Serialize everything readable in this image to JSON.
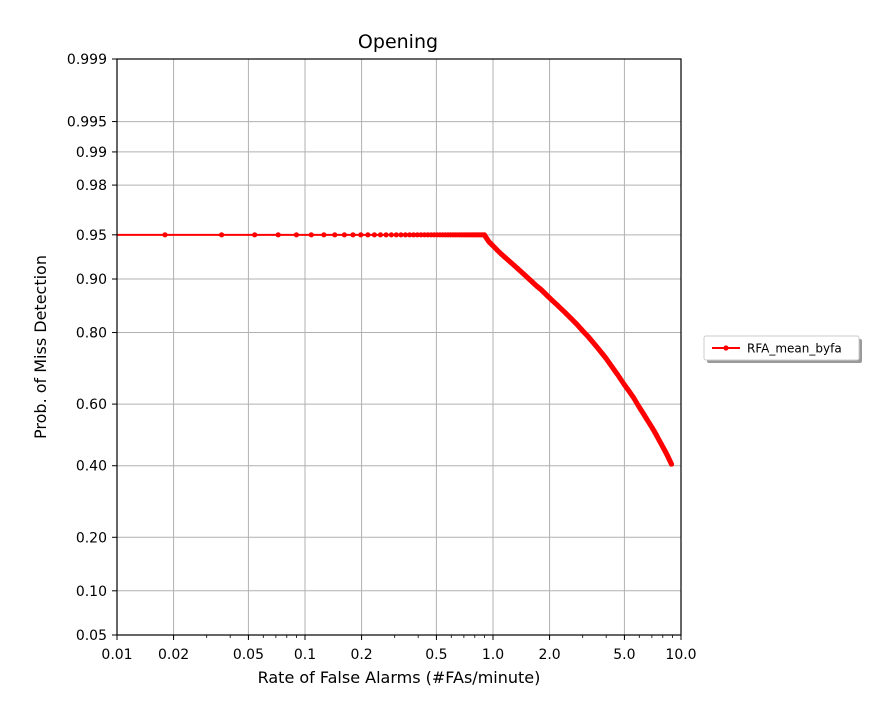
{
  "chart_data": {
    "type": "line",
    "title": "Opening",
    "xlabel": "Rate of False Alarms (#FAs/minute)",
    "ylabel": "Prob. of Miss Detection",
    "xscale": "log",
    "yscale": "probit",
    "xlim": [
      0.01,
      10.0
    ],
    "ylim": [
      0.05,
      0.999
    ],
    "x_ticks": [
      "0.01",
      "0.02",
      "0.05",
      "0.1",
      "0.2",
      "0.5",
      "1.0",
      "2.0",
      "5.0",
      "10.0"
    ],
    "y_ticks": [
      "0.05",
      "0.10",
      "0.20",
      "0.40",
      "0.60",
      "0.80",
      "0.90",
      "0.95",
      "0.98",
      "0.99",
      "0.995",
      "0.999"
    ],
    "grid": true,
    "legend_position": "outside-right",
    "series": [
      {
        "name": "RFA_mean_byfa",
        "color": "#ff0000",
        "marker": "dot",
        "x": [
          0.0,
          0.018,
          0.036,
          0.054,
          0.072,
          0.09,
          0.108,
          0.126,
          0.144,
          0.162,
          0.18,
          0.198,
          0.216,
          0.234,
          0.252,
          0.27,
          0.288,
          0.306,
          0.324,
          0.342,
          0.36,
          0.378,
          0.396,
          0.414,
          0.432,
          0.45,
          0.468,
          0.486,
          0.504,
          0.522,
          0.54,
          0.558,
          0.576,
          0.594,
          0.612,
          0.63,
          0.648,
          0.666,
          0.684,
          0.702,
          0.72,
          0.738,
          0.756,
          0.774,
          0.792,
          0.81,
          0.828,
          0.846,
          0.864,
          0.882,
          0.9,
          0.95,
          1.0,
          1.1,
          1.2,
          1.3,
          1.4,
          1.5,
          1.6,
          1.7,
          1.8,
          1.9,
          2.0,
          2.2,
          2.4,
          2.6,
          2.8,
          3.0,
          3.2,
          3.4,
          3.6,
          3.8,
          4.0,
          4.3,
          4.6,
          5.0,
          5.3,
          5.6,
          6.0,
          6.3,
          6.6,
          7.0,
          7.3,
          7.6,
          8.0,
          8.3,
          8.6,
          8.9
        ],
        "y": [
          0.95,
          0.95,
          0.95,
          0.95,
          0.95,
          0.95,
          0.95,
          0.95,
          0.95,
          0.95,
          0.95,
          0.95,
          0.95,
          0.95,
          0.95,
          0.95,
          0.95,
          0.95,
          0.95,
          0.95,
          0.95,
          0.95,
          0.95,
          0.95,
          0.95,
          0.95,
          0.95,
          0.95,
          0.95,
          0.95,
          0.95,
          0.95,
          0.95,
          0.95,
          0.95,
          0.95,
          0.95,
          0.95,
          0.95,
          0.95,
          0.95,
          0.95,
          0.95,
          0.95,
          0.95,
          0.95,
          0.95,
          0.95,
          0.95,
          0.95,
          0.95,
          0.944,
          0.94,
          0.932,
          0.925,
          0.918,
          0.911,
          0.904,
          0.897,
          0.89,
          0.884,
          0.877,
          0.87,
          0.857,
          0.844,
          0.831,
          0.818,
          0.804,
          0.791,
          0.777,
          0.763,
          0.749,
          0.735,
          0.712,
          0.69,
          0.66,
          0.64,
          0.62,
          0.59,
          0.57,
          0.55,
          0.525,
          0.506,
          0.486,
          0.461,
          0.443,
          0.424,
          0.405
        ]
      }
    ]
  }
}
